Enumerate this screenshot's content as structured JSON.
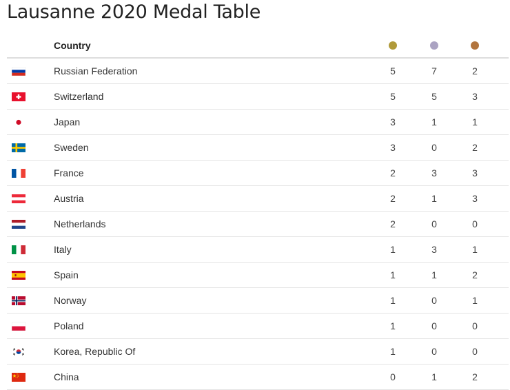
{
  "title": "Lausanne 2020 Medal Table",
  "header": {
    "country_label": "Country",
    "medals": [
      {
        "name": "gold-medal-icon",
        "color": "#b09a3a"
      },
      {
        "name": "silver-medal-icon",
        "color": "#aba3c2"
      },
      {
        "name": "bronze-medal-icon",
        "color": "#b2753e"
      }
    ]
  },
  "rows": [
    {
      "flag": "russia-flag-icon",
      "country": "Russian Federation",
      "gold": "5",
      "silver": "7",
      "bronze": "2"
    },
    {
      "flag": "switzerland-flag-icon",
      "country": "Switzerland",
      "gold": "5",
      "silver": "5",
      "bronze": "3"
    },
    {
      "flag": "japan-flag-icon",
      "country": "Japan",
      "gold": "3",
      "silver": "1",
      "bronze": "1"
    },
    {
      "flag": "sweden-flag-icon",
      "country": "Sweden",
      "gold": "3",
      "silver": "0",
      "bronze": "2"
    },
    {
      "flag": "france-flag-icon",
      "country": "France",
      "gold": "2",
      "silver": "3",
      "bronze": "3"
    },
    {
      "flag": "austria-flag-icon",
      "country": "Austria",
      "gold": "2",
      "silver": "1",
      "bronze": "3"
    },
    {
      "flag": "netherlands-flag-icon",
      "country": "Netherlands",
      "gold": "2",
      "silver": "0",
      "bronze": "0"
    },
    {
      "flag": "italy-flag-icon",
      "country": "Italy",
      "gold": "1",
      "silver": "3",
      "bronze": "1"
    },
    {
      "flag": "spain-flag-icon",
      "country": "Spain",
      "gold": "1",
      "silver": "1",
      "bronze": "2"
    },
    {
      "flag": "norway-flag-icon",
      "country": "Norway",
      "gold": "1",
      "silver": "0",
      "bronze": "1"
    },
    {
      "flag": "poland-flag-icon",
      "country": "Poland",
      "gold": "1",
      "silver": "0",
      "bronze": "0"
    },
    {
      "flag": "korea-flag-icon",
      "country": "Korea, Republic Of",
      "gold": "1",
      "silver": "0",
      "bronze": "0"
    },
    {
      "flag": "china-flag-icon",
      "country": "China",
      "gold": "0",
      "silver": "1",
      "bronze": "2"
    }
  ]
}
